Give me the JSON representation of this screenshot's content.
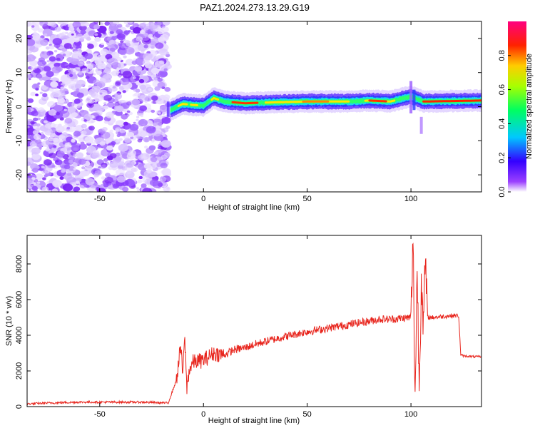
{
  "title": "PAZ1.2024.273.13.29.G19",
  "chart_data": [
    {
      "type": "heatmap",
      "xlabel": "Height of straight line (km)",
      "ylabel": "Frequency (Hz)",
      "xlim": [
        -85,
        134
      ],
      "ylim": [
        -25,
        25
      ],
      "xticks": [
        -50,
        0,
        50,
        100
      ],
      "yticks": [
        -20,
        -10,
        0,
        10,
        20
      ],
      "colorbar": {
        "label": "Normalized spectral amplitude",
        "range": [
          0,
          1
        ],
        "ticks": [
          0.0,
          0.2,
          0.4,
          0.6,
          0.8
        ],
        "colors": [
          "#ffffff",
          "#7f00ff",
          "#0000ff",
          "#00ffff",
          "#00ff00",
          "#ffff00",
          "#ff0000",
          "#ff0080"
        ]
      },
      "noise_region_x": [
        -85,
        -17
      ],
      "signal_track": [
        {
          "x": -16,
          "freq": -1.0
        },
        {
          "x": -10,
          "freq": 0.8
        },
        {
          "x": -5,
          "freq": 0.5
        },
        {
          "x": 0,
          "freq": 0.3
        },
        {
          "x": 5,
          "freq": 2.5
        },
        {
          "x": 10,
          "freq": 1.5
        },
        {
          "x": 20,
          "freq": 1.0
        },
        {
          "x": 30,
          "freq": 1.2
        },
        {
          "x": 50,
          "freq": 1.5
        },
        {
          "x": 70,
          "freq": 1.5
        },
        {
          "x": 80,
          "freq": 1.8
        },
        {
          "x": 90,
          "freq": 1.5
        },
        {
          "x": 100,
          "freq": 3.0
        },
        {
          "x": 104,
          "freq": 2.0
        },
        {
          "x": 106,
          "freq": 1.5
        },
        {
          "x": 134,
          "freq": 1.8
        }
      ]
    },
    {
      "type": "line",
      "xlabel": "Height of straight line (km)",
      "ylabel": "SNR (10 * v/v)",
      "xlim": [
        -85,
        134
      ],
      "ylim": [
        0,
        9600
      ],
      "xticks": [
        -50,
        0,
        50,
        100
      ],
      "yticks": [
        0,
        2000,
        4000,
        6000,
        8000
      ],
      "series": [
        {
          "color": "#e8261e",
          "x": [
            -85,
            -75,
            -60,
            -45,
            -30,
            -17,
            -13,
            -11,
            -10,
            -9,
            -8,
            -7,
            -5,
            0,
            5,
            10,
            15,
            20,
            25,
            30,
            40,
            50,
            60,
            70,
            80,
            85,
            90,
            95,
            100,
            101,
            102,
            103,
            104,
            105,
            106,
            107,
            108,
            110,
            115,
            120,
            123,
            124,
            125,
            130,
            134
          ],
          "y": [
            150,
            200,
            250,
            250,
            250,
            200,
            1500,
            3400,
            1800,
            3900,
            1000,
            2000,
            2500,
            2600,
            3000,
            2900,
            3200,
            3300,
            3500,
            3650,
            3950,
            4200,
            4400,
            4600,
            4800,
            4900,
            4900,
            4950,
            5000,
            9300,
            500,
            7800,
            800,
            7500,
            4500,
            8200,
            5000,
            5000,
            5050,
            5100,
            5100,
            2900,
            2850,
            2800,
            2800
          ]
        }
      ]
    }
  ]
}
